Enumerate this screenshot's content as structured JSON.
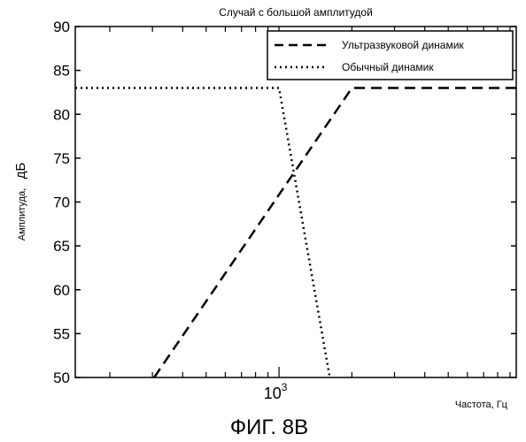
{
  "chart_data": {
    "type": "line",
    "title": "Случай с большой амплитудой",
    "xlabel": "Частота, Гц",
    "ylabel_prefix": "Амплитуда,",
    "ylabel_unit": "дБ",
    "x_scale": "log",
    "x_tick_label_base": "10",
    "x_tick_label_exp": "3",
    "x_tick_value": 1000,
    "xlim": [
      144,
      9550
    ],
    "ylim": [
      50,
      90
    ],
    "yticks": [
      50,
      55,
      60,
      65,
      70,
      75,
      80,
      85,
      90
    ],
    "grid": false,
    "legend_position": "top-right",
    "series": [
      {
        "name": "Ультразвуковой динамик",
        "style": "dashed",
        "x": [
          305,
          2000,
          9550
        ],
        "y": [
          50,
          83,
          83
        ]
      },
      {
        "name": "Обычный динамик",
        "style": "dotted",
        "x": [
          144,
          1000,
          1620
        ],
        "y": [
          83,
          83,
          50
        ]
      }
    ]
  },
  "figure_caption": "ФИГ. 8В"
}
